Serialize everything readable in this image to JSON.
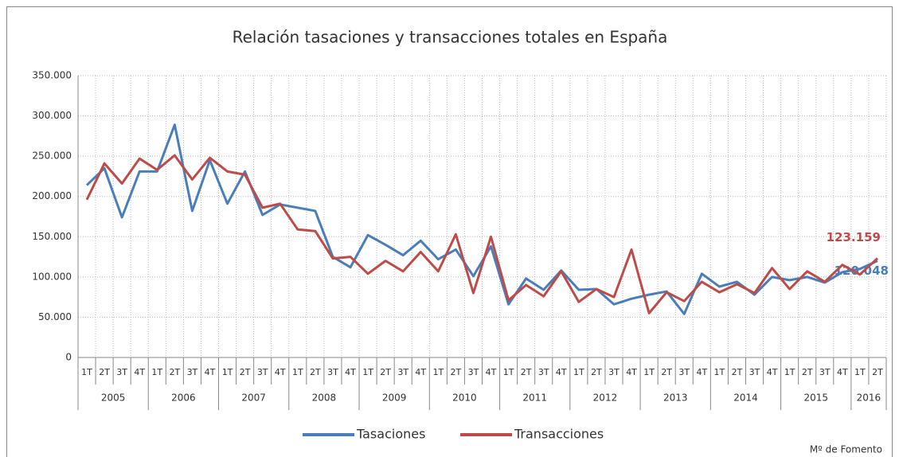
{
  "chart_data": {
    "type": "line",
    "title": "Relación tasaciones y transacciones totales en España",
    "source": "Mº de Fomento",
    "categories": [
      "1T",
      "2T",
      "3T",
      "4T",
      "1T",
      "2T",
      "3T",
      "4T",
      "1T",
      "2T",
      "3T",
      "4T",
      "1T",
      "2T",
      "3T",
      "4T",
      "1T",
      "2T",
      "3T",
      "4T",
      "1T",
      "2T",
      "3T",
      "4T",
      "1T",
      "2T",
      "3T",
      "4T",
      "1T",
      "2T",
      "3T",
      "4T",
      "1T",
      "2T",
      "3T",
      "4T",
      "1T",
      "2T",
      "3T",
      "4T",
      "1T",
      "2T",
      "3T",
      "4T",
      "1T",
      "2T"
    ],
    "years": [
      "2005",
      "2006",
      "2007",
      "2008",
      "2009",
      "2010",
      "2011",
      "2012",
      "2013",
      "2014",
      "2015",
      "2016"
    ],
    "series": [
      {
        "name": "Tasaciones",
        "color": "#4a7ebb",
        "values": [
          214000,
          235000,
          174000,
          231000,
          231000,
          289000,
          182000,
          245000,
          191000,
          231000,
          177000,
          190000,
          186000,
          182000,
          125000,
          112000,
          152000,
          140000,
          127000,
          145000,
          122000,
          134000,
          101000,
          138000,
          66000,
          98000,
          84000,
          108000,
          84000,
          85000,
          66000,
          73000,
          78000,
          82000,
          54000,
          104000,
          88000,
          94000,
          78000,
          100000,
          96000,
          100000,
          93000,
          106000,
          110000,
          120048
        ],
        "value_labels": [
          null,
          null,
          null,
          null,
          null,
          null,
          null,
          null,
          null,
          null,
          null,
          null,
          null,
          null,
          null,
          null,
          null,
          null,
          null,
          null,
          null,
          null,
          null,
          null,
          null,
          null,
          null,
          null,
          null,
          null,
          null,
          null,
          null,
          null,
          null,
          null,
          null,
          null,
          null,
          null,
          null,
          null,
          null,
          null,
          null,
          "120.048"
        ]
      },
      {
        "name": "Transacciones",
        "color": "#be4b48",
        "values": [
          196000,
          241000,
          216000,
          247000,
          233000,
          251000,
          221000,
          248000,
          231000,
          227000,
          186000,
          191000,
          159000,
          157000,
          123000,
          125000,
          104000,
          120000,
          107000,
          131000,
          107000,
          153000,
          80000,
          150000,
          71000,
          90000,
          76000,
          107000,
          69000,
          85000,
          75000,
          134000,
          55000,
          81000,
          70000,
          94000,
          81000,
          91000,
          80000,
          111000,
          85000,
          107000,
          94000,
          115000,
          103000,
          123159
        ],
        "value_labels": [
          null,
          null,
          null,
          null,
          null,
          null,
          null,
          null,
          null,
          null,
          null,
          null,
          null,
          null,
          null,
          null,
          null,
          null,
          null,
          null,
          null,
          null,
          null,
          null,
          null,
          null,
          null,
          null,
          null,
          null,
          null,
          null,
          null,
          null,
          null,
          null,
          null,
          null,
          null,
          null,
          null,
          null,
          null,
          null,
          null,
          "123.159"
        ]
      }
    ],
    "ylim": [
      0,
      350000
    ],
    "yticks": [
      0,
      {
        "value": 50000,
        "label": "50.000"
      },
      {
        "value": 100000,
        "label": "100.000"
      },
      {
        "value": 150000,
        "label": "150.000"
      },
      {
        "value": 200000,
        "label": "200.000"
      },
      {
        "value": 250000,
        "label": "250.000"
      },
      {
        "value": 300000,
        "label": "300.000"
      },
      {
        "value": 350000,
        "label": "350.000"
      }
    ],
    "grid": true,
    "legend": "bottom"
  }
}
